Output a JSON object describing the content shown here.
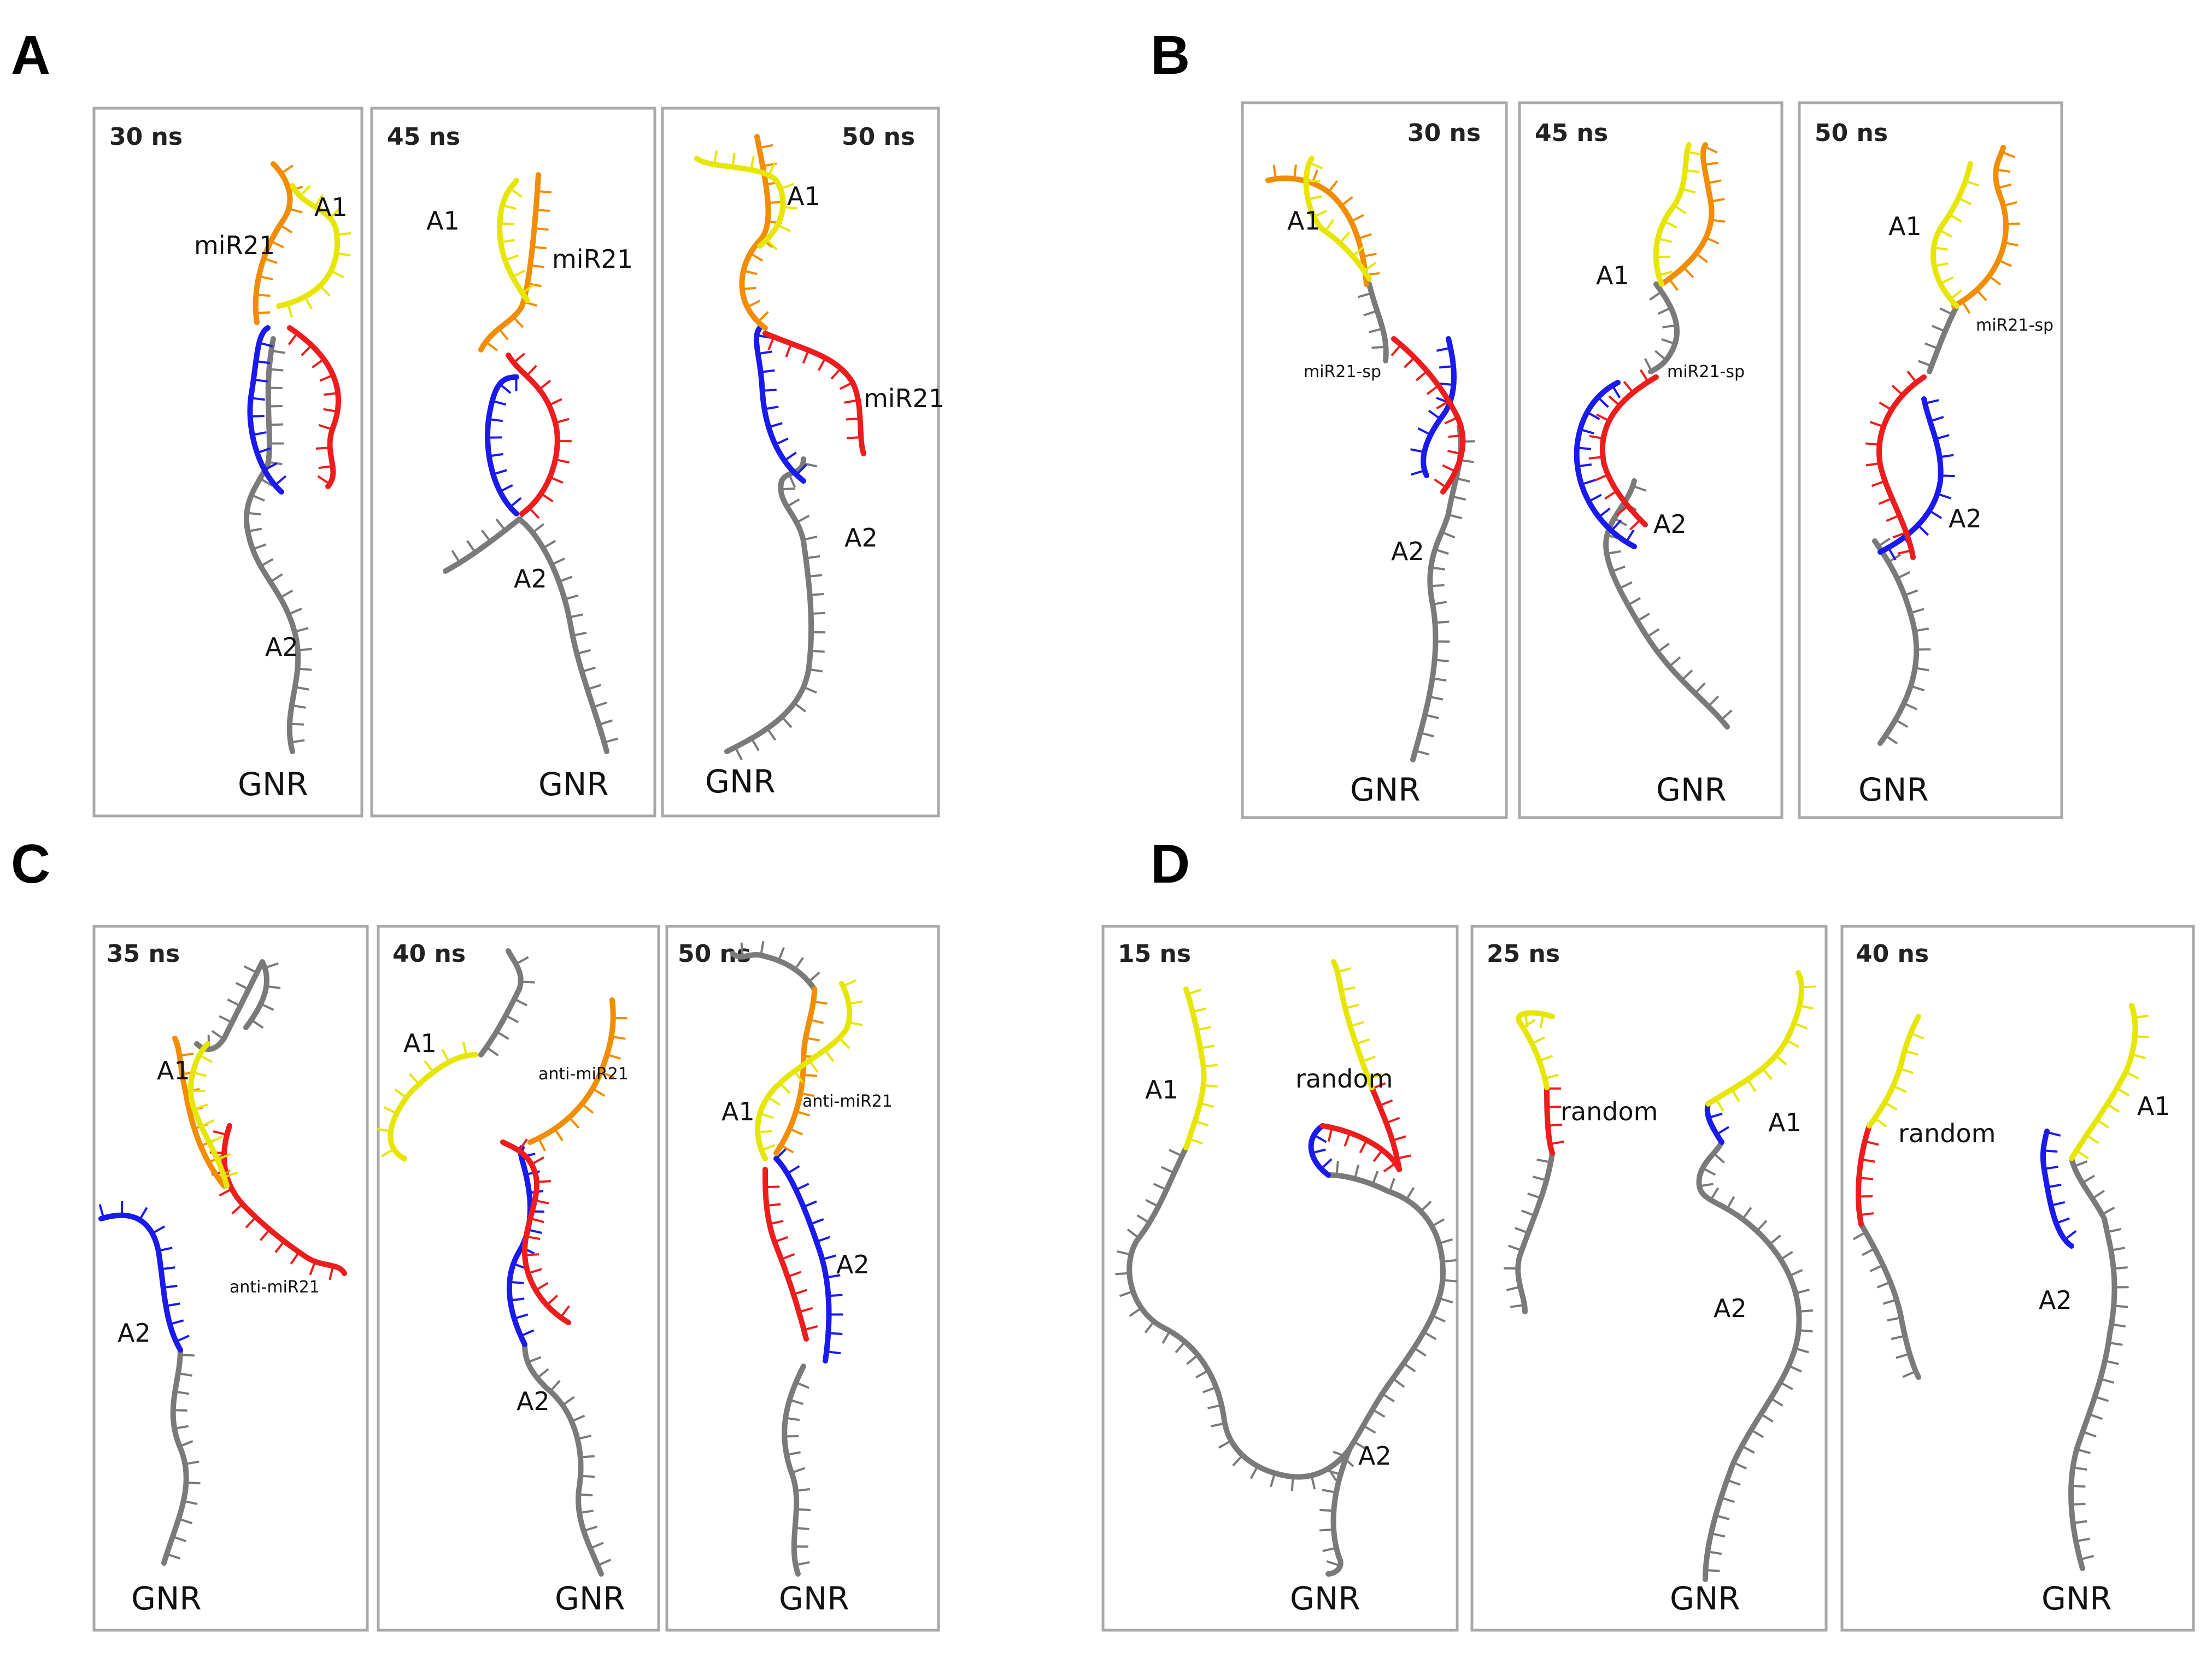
{
  "colors": {
    "A1": "#e6e600",
    "miR": "#f28c00",
    "target": "#ee1c1c",
    "A2": "#1a1aee",
    "backbone": "#7a7a7a",
    "panel_border": "#a8a8a8"
  },
  "panels": [
    {
      "id": "A",
      "label": "A",
      "frames": [
        {
          "time": "30 ns",
          "labels": [
            "A1",
            "miR21",
            "A2"
          ],
          "base": "GNR"
        },
        {
          "time": "45 ns",
          "labels": [
            "A1",
            "miR21",
            "A2"
          ],
          "base": "GNR"
        },
        {
          "time": "50 ns",
          "labels": [
            "A1",
            "miR21",
            "A2"
          ],
          "base": "GNR"
        }
      ]
    },
    {
      "id": "B",
      "label": "B",
      "frames": [
        {
          "time": "30 ns",
          "labels": [
            "A1",
            "miR21-sp",
            "A2"
          ],
          "base": "GNR"
        },
        {
          "time": "45 ns",
          "labels": [
            "A1",
            "miR21-sp",
            "A2"
          ],
          "base": "GNR"
        },
        {
          "time": "50 ns",
          "labels": [
            "A1",
            "miR21-sp",
            "A2"
          ],
          "base": "GNR"
        }
      ]
    },
    {
      "id": "C",
      "label": "C",
      "frames": [
        {
          "time": "35 ns",
          "labels": [
            "A1",
            "anti-miR21",
            "A2"
          ],
          "base": "GNR"
        },
        {
          "time": "40 ns",
          "labels": [
            "A1",
            "anti-miR21",
            "A2"
          ],
          "base": "GNR"
        },
        {
          "time": "50 ns",
          "labels": [
            "A1",
            "anti-miR21",
            "A2"
          ],
          "base": "GNR"
        }
      ]
    },
    {
      "id": "D",
      "label": "D",
      "frames": [
        {
          "time": "15 ns",
          "labels": [
            "A1",
            "random",
            "A2"
          ],
          "base": "GNR"
        },
        {
          "time": "25 ns",
          "labels": [
            "random",
            "A1",
            "A2"
          ],
          "base": "GNR"
        },
        {
          "time": "40 ns",
          "labels": [
            "random",
            "A1",
            "A2"
          ],
          "base": "GNR"
        }
      ]
    }
  ]
}
